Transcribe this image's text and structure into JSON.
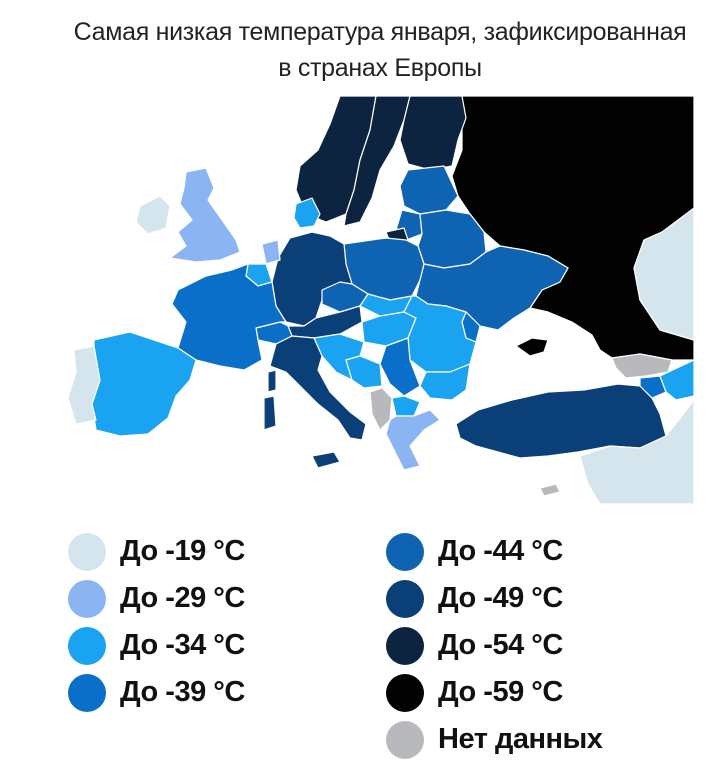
{
  "title": {
    "line1": "Самая низкая температура января, зафиксированная",
    "line2": "в странах Европы"
  },
  "colors": {
    "c19": "#d5e5ee",
    "c29": "#8ab4f2",
    "c34": "#1aa3f0",
    "c39": "#0a6fc8",
    "c44": "#0f63b3",
    "c49": "#0a3f78",
    "c54": "#0c2440",
    "c59": "#020202",
    "nodata": "#b7b9bd",
    "sea": "#ffffff",
    "border": "#ffffff"
  },
  "legend": {
    "items": [
      {
        "label": "До -19 °C",
        "color": "#d5e5ee"
      },
      {
        "label": "До -29 °C",
        "color": "#8ab4f2"
      },
      {
        "label": "До -34 °C",
        "color": "#1aa3f0"
      },
      {
        "label": "До -39 °C",
        "color": "#0a6fc8"
      },
      {
        "label": "До -44 °C",
        "color": "#0f63b3"
      },
      {
        "label": "До -49 °C",
        "color": "#0a3f78"
      },
      {
        "label": "До -54 °C",
        "color": "#0c2440"
      },
      {
        "label": "До -59 °C",
        "color": "#020202"
      },
      {
        "label": "Нет данных",
        "color": "#b7b9bd"
      }
    ]
  }
}
